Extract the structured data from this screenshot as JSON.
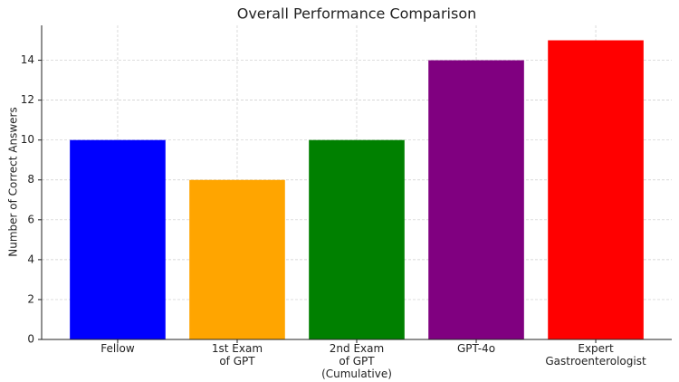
{
  "chart_data": {
    "type": "bar",
    "title": "Overall Performance Comparison",
    "y_label": "Number of Correct Answers",
    "categories": [
      "Fellow",
      "1st Exam\nof GPT",
      "2nd Exam\nof GPT\n(Cumulative)",
      "GPT-4o",
      "Expert\nGastroenterologist"
    ],
    "values": [
      10,
      8,
      10,
      14,
      15
    ],
    "colors": [
      "#0000ff",
      "#ffa500",
      "#008000",
      "#800080",
      "#ff0000"
    ],
    "ylim": [
      0,
      15.75
    ],
    "yticks": [
      0,
      2,
      4,
      6,
      8,
      10,
      12,
      14
    ],
    "grid": true
  }
}
